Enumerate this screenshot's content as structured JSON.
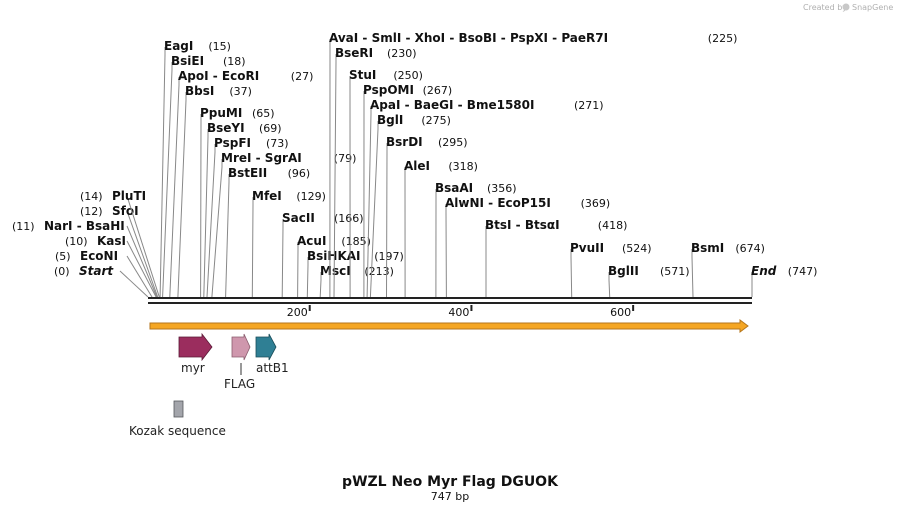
{
  "credit": {
    "prefix": "Created by",
    "brand": "SnapGene"
  },
  "plasmid": {
    "name": "pWZL Neo Myr Flag DGUOK",
    "length_label": "747 bp",
    "length_bp": 747
  },
  "sites": [
    {
      "label": "Start",
      "pos": 0,
      "pos_label": "(0)",
      "italic": true
    },
    {
      "label": "EcoNI",
      "pos": 5,
      "pos_label": "(5)"
    },
    {
      "label": "KasI",
      "pos": 10,
      "pos_label": "(10)"
    },
    {
      "label": "NarI  - BsaHI",
      "pos": 11,
      "pos_label": "(11)"
    },
    {
      "label": "SfoI",
      "pos": 12,
      "pos_label": "(12)"
    },
    {
      "label": "PluTI",
      "pos": 14,
      "pos_label": "(14)"
    },
    {
      "label": "EagI",
      "pos": 15,
      "pos_label": "(15)"
    },
    {
      "label": "BsiEI",
      "pos": 18,
      "pos_label": "(18)"
    },
    {
      "label": "ApoI  - EcoRI",
      "pos": 27,
      "pos_label": "(27)"
    },
    {
      "label": "BbsI",
      "pos": 37,
      "pos_label": "(37)"
    },
    {
      "label": "PpuMI",
      "pos": 65,
      "pos_label": "(65)"
    },
    {
      "label": "BseYI",
      "pos": 69,
      "pos_label": "(69)"
    },
    {
      "label": "PspFI",
      "pos": 73,
      "pos_label": "(73)"
    },
    {
      "label": "MreI  - SgrAI",
      "pos": 79,
      "pos_label": "(79)"
    },
    {
      "label": "BstEII",
      "pos": 96,
      "pos_label": "(96)"
    },
    {
      "label": "MfeI",
      "pos": 129,
      "pos_label": "(129)"
    },
    {
      "label": "SacII",
      "pos": 166,
      "pos_label": "(166)"
    },
    {
      "label": "AcuI",
      "pos": 185,
      "pos_label": "(185)"
    },
    {
      "label": "BsiHKAI",
      "pos": 197,
      "pos_label": "(197)"
    },
    {
      "label": "MscI",
      "pos": 213,
      "pos_label": "(213)"
    },
    {
      "label": "AvaI  - SmlI  - XhoI  - BsoBI  - PspXI  - PaeR7I",
      "pos": 225,
      "pos_label": "(225)"
    },
    {
      "label": "BseRI",
      "pos": 230,
      "pos_label": "(230)"
    },
    {
      "label": "StuI",
      "pos": 250,
      "pos_label": "(250)"
    },
    {
      "label": "PspOMI",
      "pos": 267,
      "pos_label": "(267)"
    },
    {
      "label": "ApaI  - BaeGI  - Bme1580I",
      "pos": 271,
      "pos_label": "(271)"
    },
    {
      "label": "BglI",
      "pos": 275,
      "pos_label": "(275)"
    },
    {
      "label": "BsrDI",
      "pos": 295,
      "pos_label": "(295)"
    },
    {
      "label": "AleI",
      "pos": 318,
      "pos_label": "(318)"
    },
    {
      "label": "BsaAI",
      "pos": 356,
      "pos_label": "(356)"
    },
    {
      "label": "AlwNI  - EcoP15I",
      "pos": 369,
      "pos_label": "(369)"
    },
    {
      "label": "BtsI  - BtsαI",
      "pos": 418,
      "pos_label": "(418)"
    },
    {
      "label": "PvuII",
      "pos": 524,
      "pos_label": "(524)"
    },
    {
      "label": "BglII",
      "pos": 571,
      "pos_label": "(571)"
    },
    {
      "label": "BsmI",
      "pos": 674,
      "pos_label": "(674)"
    },
    {
      "label": "End",
      "pos": 747,
      "pos_label": "(747)",
      "italic": true
    }
  ],
  "ruler": {
    "ticks": [
      200,
      400,
      600
    ]
  },
  "features": [
    {
      "name": "myr",
      "color": "#9b2d5e"
    },
    {
      "name": "FLAG",
      "color": "#cf97ad"
    },
    {
      "name": "attB1",
      "color": "#2f7f94"
    },
    {
      "name": "Kozak sequence",
      "color": "#a3a5ab"
    }
  ],
  "colors": {
    "orf_fill": "#f5a623",
    "orf_edge": "#b5761c",
    "backbone": "#222222"
  }
}
